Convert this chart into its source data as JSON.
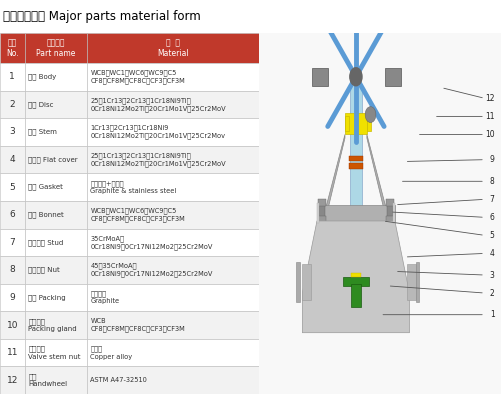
{
  "title_cn": "主要零件材料",
  "title_en": " Major parts material form",
  "header_no": "序号\nNo.",
  "header_part": "零件名称\nPart name",
  "header_mat": "材  质\nMaterial",
  "rows": [
    [
      "1",
      "阀体 Body",
      "WCB、WC1、WC6、WC9、C5\nCF8、CF8M、CF8C、CF3、CF3M"
    ],
    [
      "2",
      "阀瓣 Disc",
      "25、1Cr13、2Cr13、1Cr18Ni9Ti、\n0Cr18Ni12Mo2Ti、20Cr1Mo1V、25Cr2MoV"
    ],
    [
      "3",
      "阀杆 Stem",
      "1Cr13、2Cr13、1Cr18Ni9\n0Cr18Ni12Mo2Ti、20Cr1Mo1V、25Cr2Mov"
    ],
    [
      "4",
      "阀瓣盖 Flat cover",
      "25、1Cr13、2Cr13、1Cr18Ni9Ti、\n0Cr18Ni12Mo2Ti、20Cr1Mo1V、25Cr2MoV"
    ],
    [
      "5",
      "垫片 Gasket",
      "柔性石墨+不锈钓\nGraphite & stainless steel"
    ],
    [
      "6",
      "阀盖 Bonnet",
      "WCB、WC1、WC6、WC9、C5\nCF8、CF8M、CF8C、CF3、CF3M"
    ],
    [
      "7",
      "双头螺柱 Stud",
      "35CrMoA、\n0Cr18Ni9、0Cr17Ni12Mo2、25Cr2MoV"
    ],
    [
      "8",
      "六角螺母 Nut",
      "45、35CrMoA、\n0Cr18Ni9、0Cr17Ni12Mo2、25Cr2MoV"
    ],
    [
      "9",
      "填料 Packing",
      "柔性石墨\nGraphite"
    ],
    [
      "10",
      "填料压盖\nPacking gland",
      "WCB\nCF8、CF8M、CF8C、CF3、CF3M"
    ],
    [
      "11",
      "阀杆螺母\nValve stem nut",
      "铜合金\nCopper alloy"
    ],
    [
      "12",
      "手轮\nHandwheel",
      "ASTM A47-32510"
    ]
  ],
  "header_bg": "#c0392b",
  "header_text_color": "#ffffff",
  "row_bg_odd": "#ffffff",
  "row_bg_even": "#f2f2f2",
  "border_color": "#bbbbbb",
  "title_color": "#000000",
  "text_color": "#333333",
  "red_bar_color": "#c0392b",
  "image_bg": "#f0f0f0"
}
